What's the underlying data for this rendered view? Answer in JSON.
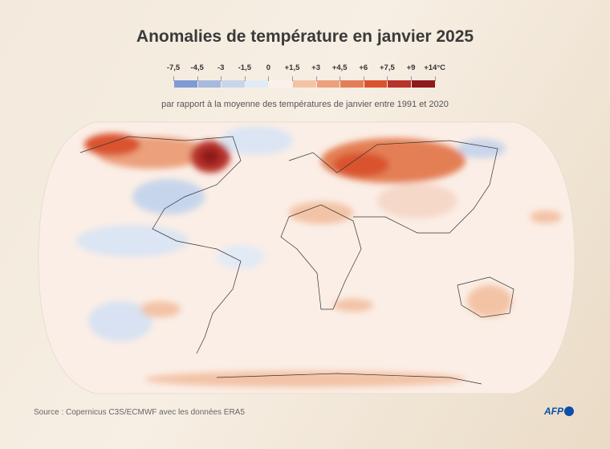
{
  "title": "Anomalies de température en janvier 2025",
  "legend": {
    "tick_labels": [
      "-7,5",
      "-4,5",
      "-3",
      "-1,5",
      "0",
      "+1,5",
      "+3",
      "+4,5",
      "+6",
      "+7,5",
      "+9",
      "+14°C"
    ],
    "colors": [
      "#7f9bd6",
      "#a7b9de",
      "#c9d5ea",
      "#e2eaf5",
      "#fbf1ea",
      "#f3c3a6",
      "#eca07c",
      "#e47f55",
      "#d9532e",
      "#b8332a",
      "#8e1a1e"
    ]
  },
  "subtitle": "par rapport à la moyenne des températures de janvier entre 1991 et 2020",
  "source": "Source : Copernicus C3S/ECMWF avec les données ERA5",
  "logo": "AFP"
}
